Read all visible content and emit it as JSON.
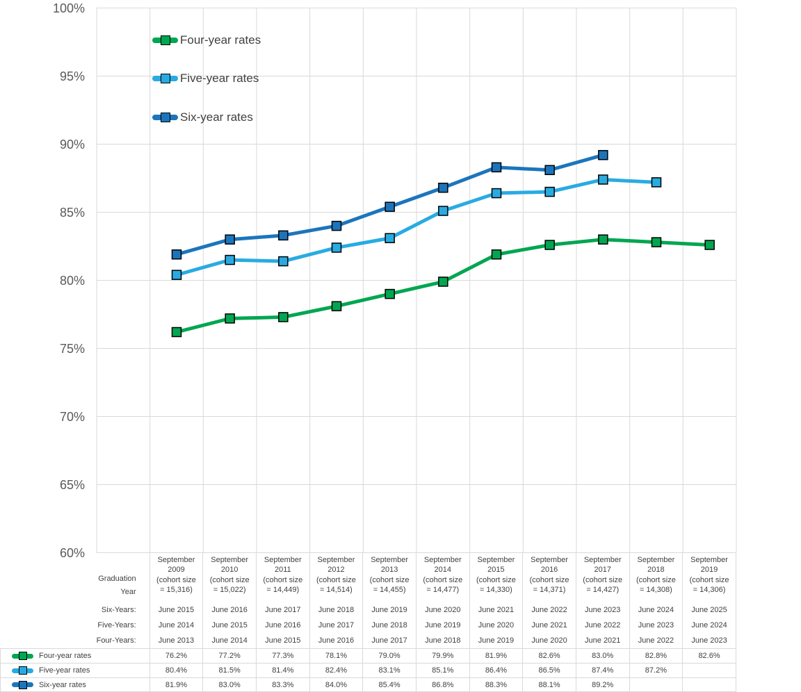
{
  "chart_data": {
    "type": "line",
    "title": "",
    "xlabel": "",
    "ylabel": "",
    "categories": [
      "September 2009",
      "September 2010",
      "September 2011",
      "September 2012",
      "September 2013",
      "September 2014",
      "September 2015",
      "September 2016",
      "September 2017",
      "September 2018",
      "September 2019"
    ],
    "series": [
      {
        "name": "Four-year rates",
        "color": "#00A651",
        "values": [
          76.2,
          77.2,
          77.3,
          78.1,
          79.0,
          79.9,
          81.9,
          82.6,
          83.0,
          82.8,
          82.6
        ]
      },
      {
        "name": "Five-year rates",
        "color": "#29ABE2",
        "values": [
          80.4,
          81.5,
          81.4,
          82.4,
          83.1,
          85.1,
          86.4,
          86.5,
          87.4,
          87.2,
          null
        ]
      },
      {
        "name": "Six-year rates",
        "color": "#1C75BC",
        "values": [
          81.9,
          83.0,
          83.3,
          84.0,
          85.4,
          86.8,
          88.3,
          88.1,
          89.2,
          null,
          null
        ]
      }
    ],
    "ylim": [
      60,
      100
    ],
    "ytick_step": 5,
    "ytick_suffix": "%",
    "grid": true,
    "gridline_color": "#D9D9D9",
    "marker": "square",
    "legend_position": "inside-top-left"
  },
  "table": {
    "corner_label_lines": [
      "Graduation",
      "Year"
    ],
    "columns": [
      {
        "header_lines": [
          "September",
          "2009",
          "(cohort size",
          "= 15,316)"
        ]
      },
      {
        "header_lines": [
          "September",
          "2010",
          "(cohort size",
          "= 15,022)"
        ]
      },
      {
        "header_lines": [
          "September",
          "2011",
          "(cohort size",
          "= 14,449)"
        ]
      },
      {
        "header_lines": [
          "September",
          "2012",
          "(cohort size",
          "= 14,514)"
        ]
      },
      {
        "header_lines": [
          "September",
          "2013",
          "(cohort size",
          "= 14,455)"
        ]
      },
      {
        "header_lines": [
          "September",
          "2014",
          "(cohort size",
          "= 14,477)"
        ]
      },
      {
        "header_lines": [
          "September",
          "2015",
          "(cohort size",
          "= 14,330)"
        ]
      },
      {
        "header_lines": [
          "September",
          "2016",
          "(cohort size",
          "= 14,371)"
        ]
      },
      {
        "header_lines": [
          "September",
          "2017",
          "(cohort size",
          "= 14,427)"
        ]
      },
      {
        "header_lines": [
          "September",
          "2018",
          "(cohort size",
          "= 14,308)"
        ]
      },
      {
        "header_lines": [
          "September",
          "2019",
          "(cohort size",
          "= 14,306)"
        ]
      }
    ],
    "rows": [
      {
        "label": "Six-Years:",
        "values": [
          "June 2015",
          "June 2016",
          "June 2017",
          "June 2018",
          "June 2019",
          "June 2020",
          "June 2021",
          "June 2022",
          "June 2023",
          "June 2024",
          "June 2025"
        ]
      },
      {
        "label": "Five-Years:",
        "values": [
          "June 2014",
          "June 2015",
          "June 2016",
          "June 2017",
          "June 2018",
          "June 2019",
          "June 2020",
          "June 2021",
          "June 2022",
          "June 2023",
          "June 2024"
        ]
      },
      {
        "label": "Four-Years:",
        "values": [
          "June 2013",
          "June 2014",
          "June 2015",
          "June 2016",
          "June 2017",
          "June 2018",
          "June 2019",
          "June 2020",
          "June 2021",
          "June 2022",
          "June 2023"
        ]
      }
    ],
    "rate_rows": [
      {
        "label": "Four-year rates",
        "color": "#00A651",
        "values": [
          "76.2%",
          "77.2%",
          "77.3%",
          "78.1%",
          "79.0%",
          "79.9%",
          "81.9%",
          "82.6%",
          "83.0%",
          "82.8%",
          "82.6%"
        ]
      },
      {
        "label": "Five-year rates",
        "color": "#29ABE2",
        "values": [
          "80.4%",
          "81.5%",
          "81.4%",
          "82.4%",
          "83.1%",
          "85.1%",
          "86.4%",
          "86.5%",
          "87.4%",
          "87.2%",
          ""
        ]
      },
      {
        "label": "Six-year rates",
        "color": "#1C75BC",
        "values": [
          "81.9%",
          "83.0%",
          "83.3%",
          "84.0%",
          "85.4%",
          "86.8%",
          "88.3%",
          "88.1%",
          "89.2%",
          "",
          ""
        ]
      }
    ]
  }
}
